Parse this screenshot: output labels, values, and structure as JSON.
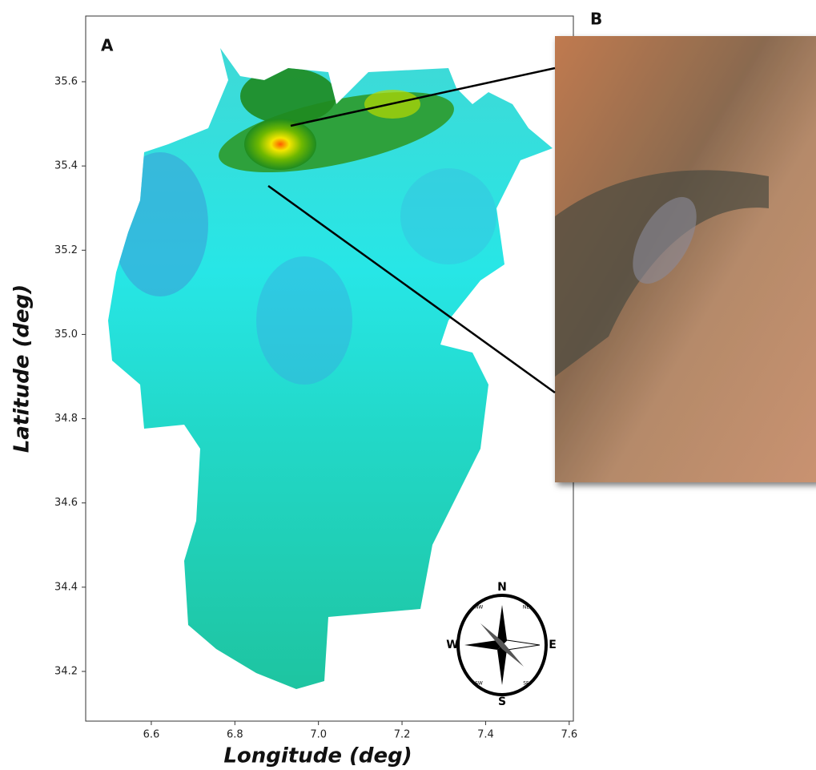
{
  "panels": {
    "left": "A",
    "right": "B"
  },
  "axes": {
    "x_label": "Longitude (deg)",
    "y_label": "Latitude (deg)",
    "xlim": [
      6.443,
      7.61
    ],
    "ylim": [
      34.082,
      35.756
    ],
    "xticks": [
      6.6,
      6.8,
      {
        "value": 7,
        "label": "7.0"
      },
      7.2,
      7.4,
      7.6
    ],
    "yticks": [
      34.2,
      34.4,
      34.6,
      34.8,
      {
        "value": 35,
        "label": "35.0"
      },
      35.2,
      35.4,
      35.6
    ]
  },
  "compass": {
    "n": "N",
    "s": "S",
    "e": "E",
    "w": "W",
    "nw": "NW",
    "ne": "NE",
    "sw": "SW",
    "se": "SE"
  }
}
